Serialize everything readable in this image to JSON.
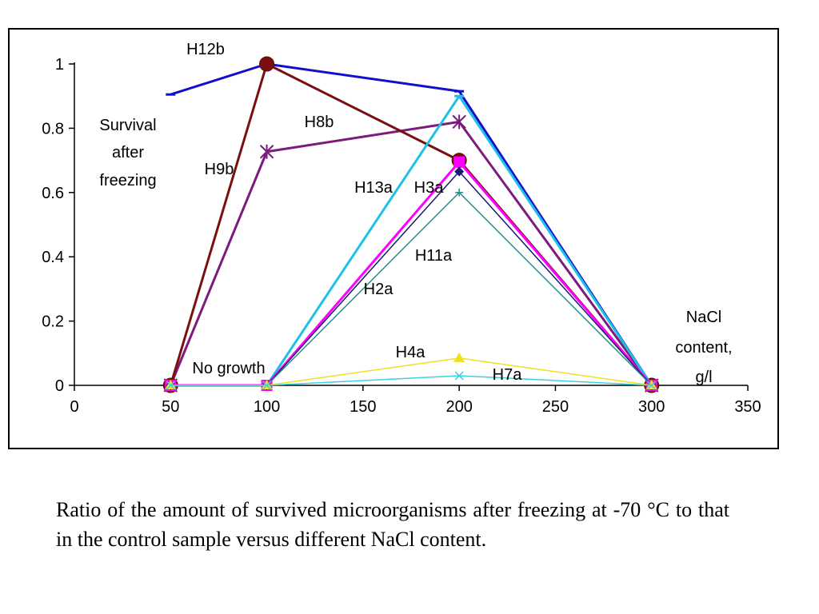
{
  "chart_data": {
    "type": "line",
    "xlim": [
      0,
      350
    ],
    "ylim": [
      0,
      1
    ],
    "x_ticks": [
      "0",
      "50",
      "100",
      "150",
      "200",
      "250",
      "300",
      "350"
    ],
    "y_ticks": [
      "0",
      "0.2",
      "0.4",
      "0.6",
      "0.8",
      "1"
    ],
    "xlabel": [
      "NaCl",
      "content,",
      "g/l"
    ],
    "ylabel": [
      "Survival",
      "after",
      "freezing"
    ],
    "grid": false,
    "annotations": [
      "No growth"
    ],
    "series": [
      {
        "name": "H12b",
        "color": "#1010cc",
        "marker": "dash",
        "width": 3,
        "x": [
          50,
          100,
          200,
          300
        ],
        "y": [
          0.905,
          1.0,
          0.915,
          0.0
        ]
      },
      {
        "name": "H8b",
        "color": "#7d1a7d",
        "marker": "star",
        "width": 3,
        "x": [
          50,
          100,
          200,
          300
        ],
        "y": [
          0.0,
          0.727,
          0.82,
          0.0
        ]
      },
      {
        "name": "H9b",
        "color": "#7b0f0f",
        "marker": "circle",
        "width": 3,
        "x": [
          50,
          100,
          200,
          300
        ],
        "y": [
          0.0,
          1.0,
          0.7,
          0.0
        ]
      },
      {
        "name": "H13a",
        "color": "#1ec0e8",
        "marker": "dash",
        "width": 3,
        "x": [
          50,
          100,
          200,
          300
        ],
        "y": [
          0.0,
          0.0,
          0.9,
          0.0
        ]
      },
      {
        "name": "H3a",
        "color": "#ff00ff",
        "marker": "square",
        "width": 3,
        "x": [
          50,
          100,
          200,
          300
        ],
        "y": [
          0.0,
          0.0,
          0.695,
          0.0
        ]
      },
      {
        "name": "H2a",
        "color": "#1a1a6e",
        "marker": "diamond",
        "width": 1.5,
        "x": [
          50,
          100,
          200,
          300
        ],
        "y": [
          0.0,
          0.0,
          0.665,
          0.0
        ]
      },
      {
        "name": "H11a",
        "color": "#2e8b8b",
        "marker": "plus",
        "width": 1.5,
        "x": [
          50,
          100,
          200,
          300
        ],
        "y": [
          0.0,
          0.0,
          0.6,
          0.0
        ]
      },
      {
        "name": "H4a",
        "color": "#f0e020",
        "marker": "triangle",
        "width": 1.5,
        "x": [
          50,
          100,
          200,
          300
        ],
        "y": [
          0.0,
          0.0,
          0.085,
          0.0
        ]
      },
      {
        "name": "H7a",
        "color": "#40d0e0",
        "marker": "cross",
        "width": 1.5,
        "x": [
          50,
          100,
          200,
          300
        ],
        "y": [
          0.0,
          0.0,
          0.03,
          0.0
        ]
      }
    ]
  },
  "caption": "Ratio of the amount of survived microorganisms after freezing at -70 °C to that in the control sample versus different NaCl content."
}
